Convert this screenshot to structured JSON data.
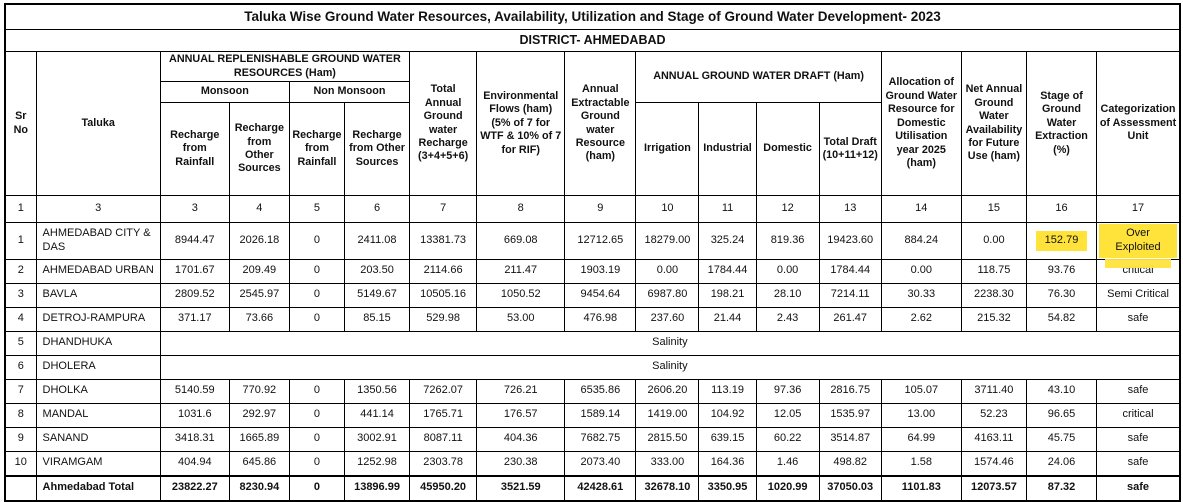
{
  "title": "Taluka Wise Ground Water Resources, Availability, Utilization and Stage of Ground Water Development- 2023",
  "district": "DISTRICT- AHMEDABAD",
  "colors": {
    "highlight_yellow": "#ffe33b",
    "border": "#000000"
  },
  "header": {
    "sr_no": "Sr No",
    "taluka": "Taluka",
    "annual_replenishable": "ANNUAL REPLENISHABLE GROUND WATER RESOURCES (Ham)",
    "monsoon": "Monsoon",
    "non_monsoon": "Non Monsoon",
    "recharge_rainfall_monsoon": "Recharge from Rainfall",
    "recharge_other_monsoon": "Recharge from Other Sources",
    "recharge_rainfall_nonmonsoon": "Recharge from Rainfall",
    "recharge_other_nonmonsoon": "Recharge from Other Sources",
    "total_recharge": "Total Annual Ground water Recharge (3+4+5+6)",
    "environmental_flows": "Environmental Flows (ham) (5% of 7 for WTF & 10% of 7 for RIF)",
    "extractable_resource": "Annual Extractable Ground water Resource (ham)",
    "gw_draft": "ANNUAL GROUND WATER DRAFT (Ham)",
    "irrigation": "Irrigation",
    "industrial": "Industrial",
    "domestic": "Domestic",
    "total_draft": "Total Draft (10+11+12)",
    "allocation": "Allocation of Ground Water Resource for Domestic Utilisation year 2025 (ham)",
    "net_availability": "Net Annual Ground Water Availability for Future Use (ham)",
    "stage_extraction": "Stage of Ground Water Extraction (%)",
    "categorization": "Categorization of Assessment Unit"
  },
  "column_numbers": [
    "1",
    "3",
    "3",
    "4",
    "5",
    "6",
    "7",
    "8",
    "9",
    "10",
    "11",
    "12",
    "13",
    "14",
    "15",
    "16",
    "17"
  ],
  "rows": [
    {
      "sr": "1",
      "taluka": "AHMEDABAD CITY & DAS",
      "values": [
        "8944.47",
        "2026.18",
        "0",
        "2411.08",
        "13381.73",
        "669.08",
        "12712.65",
        "18279.00",
        "325.24",
        "819.36",
        "19423.60",
        "884.24",
        "0.00",
        "152.79",
        "Over Exploited"
      ],
      "highlight": [
        13,
        14
      ],
      "highlight_tail": [
        14
      ]
    },
    {
      "sr": "2",
      "taluka": "AHMEDABAD URBAN",
      "values": [
        "1701.67",
        "209.49",
        "0",
        "203.50",
        "2114.66",
        "211.47",
        "1903.19",
        "0.00",
        "1784.44",
        "0.00",
        "1784.44",
        "0.00",
        "118.75",
        "93.76",
        "critical"
      ]
    },
    {
      "sr": "3",
      "taluka": "BAVLA",
      "values": [
        "2809.52",
        "2545.97",
        "0",
        "5149.67",
        "10505.16",
        "1050.52",
        "9454.64",
        "6987.80",
        "198.21",
        "28.10",
        "7214.11",
        "30.33",
        "2238.30",
        "76.30",
        "Semi Critical"
      ]
    },
    {
      "sr": "4",
      "taluka": "DETROJ-RAMPURA",
      "values": [
        "371.17",
        "73.66",
        "0",
        "85.15",
        "529.98",
        "53.00",
        "476.98",
        "237.60",
        "21.44",
        "2.43",
        "261.47",
        "2.62",
        "215.32",
        "54.82",
        "safe"
      ]
    },
    {
      "sr": "5",
      "taluka": "DHANDHUKA",
      "salinity": "Salinity"
    },
    {
      "sr": "6",
      "taluka": "DHOLERA",
      "salinity": "Salinity"
    },
    {
      "sr": "7",
      "taluka": "DHOLKA",
      "values": [
        "5140.59",
        "770.92",
        "0",
        "1350.56",
        "7262.07",
        "726.21",
        "6535.86",
        "2606.20",
        "113.19",
        "97.36",
        "2816.75",
        "105.07",
        "3711.40",
        "43.10",
        "safe"
      ]
    },
    {
      "sr": "8",
      "taluka": "MANDAL",
      "values": [
        "1031.6",
        "292.97",
        "0",
        "441.14",
        "1765.71",
        "176.57",
        "1589.14",
        "1419.00",
        "104.92",
        "12.05",
        "1535.97",
        "13.00",
        "52.23",
        "96.65",
        "critical"
      ]
    },
    {
      "sr": "9",
      "taluka": "SANAND",
      "values": [
        "3418.31",
        "1665.89",
        "0",
        "3002.91",
        "8087.11",
        "404.36",
        "7682.75",
        "2815.50",
        "639.15",
        "60.22",
        "3514.87",
        "64.99",
        "4163.11",
        "45.75",
        "safe"
      ]
    },
    {
      "sr": "10",
      "taluka": "VIRAMGAM",
      "values": [
        "404.94",
        "645.86",
        "0",
        "1252.98",
        "2303.78",
        "230.38",
        "2073.40",
        "333.00",
        "164.36",
        "1.46",
        "498.82",
        "1.58",
        "1574.46",
        "24.06",
        "safe"
      ]
    },
    {
      "sr": "",
      "taluka": "Ahmedabad Total",
      "total": true,
      "values": [
        "23822.27",
        "8230.94",
        "0",
        "13896.99",
        "45950.20",
        "3521.59",
        "42428.61",
        "32678.10",
        "3350.95",
        "1020.99",
        "37050.03",
        "1101.83",
        "12073.57",
        "87.32",
        "safe"
      ]
    }
  ]
}
